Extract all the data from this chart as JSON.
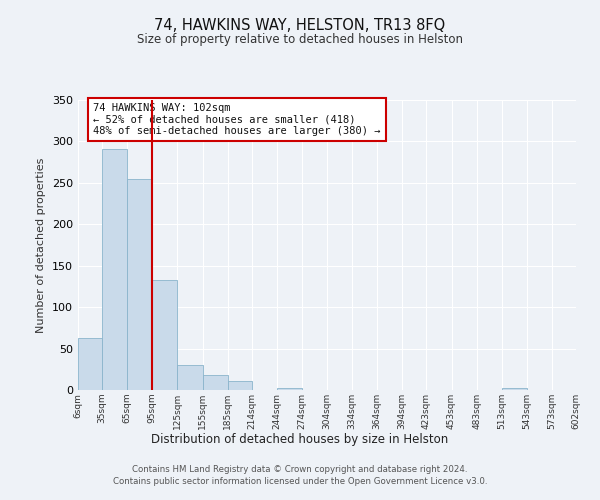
{
  "title": "74, HAWKINS WAY, HELSTON, TR13 8FQ",
  "subtitle": "Size of property relative to detached houses in Helston",
  "xlabel": "Distribution of detached houses by size in Helston",
  "ylabel": "Number of detached properties",
  "bar_color": "#c9daea",
  "bar_edge_color": "#8ab4cc",
  "background_color": "#eef2f7",
  "grid_color": "#ffffff",
  "annotation_line1": "74 HAWKINS WAY: 102sqm",
  "annotation_line2": "← 52% of detached houses are smaller (418)",
  "annotation_line3": "48% of semi-detached houses are larger (380) →",
  "annotation_box_edgecolor": "#cc0000",
  "vline_x": 95,
  "vline_color": "#cc0000",
  "bin_edges": [
    6,
    35,
    65,
    95,
    125,
    155,
    185,
    214,
    244,
    274,
    304,
    334,
    364,
    394,
    423,
    453,
    483,
    513,
    543,
    573,
    602
  ],
  "bin_counts": [
    63,
    291,
    255,
    133,
    30,
    18,
    11,
    0,
    3,
    0,
    0,
    0,
    0,
    0,
    0,
    0,
    0,
    2,
    0,
    0
  ],
  "tick_labels": [
    "6sqm",
    "35sqm",
    "65sqm",
    "95sqm",
    "125sqm",
    "155sqm",
    "185sqm",
    "214sqm",
    "244sqm",
    "274sqm",
    "304sqm",
    "334sqm",
    "364sqm",
    "394sqm",
    "423sqm",
    "453sqm",
    "483sqm",
    "513sqm",
    "543sqm",
    "573sqm",
    "602sqm"
  ],
  "ylim": [
    0,
    350
  ],
  "yticks": [
    0,
    50,
    100,
    150,
    200,
    250,
    300,
    350
  ],
  "footnote1": "Contains HM Land Registry data © Crown copyright and database right 2024.",
  "footnote2": "Contains public sector information licensed under the Open Government Licence v3.0."
}
